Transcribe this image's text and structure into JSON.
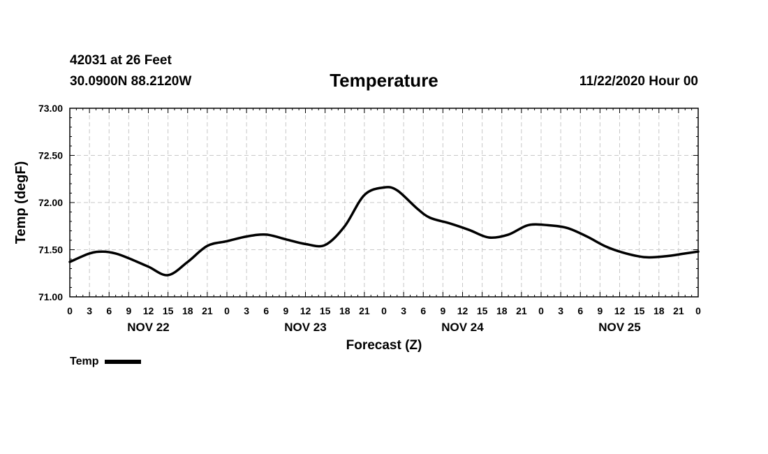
{
  "header": {
    "station": "42031 at 26 Feet",
    "coords": "30.0900N 88.2120W",
    "title": "Temperature",
    "run": "11/22/2020 Hour 00"
  },
  "chart_data": {
    "type": "line",
    "title": "Temperature",
    "xlabel": "Forecast (Z)",
    "ylabel": "Temp (degF)",
    "ylim": [
      71.0,
      73.0
    ],
    "yticks": [
      "71.00",
      "71.50",
      "72.00",
      "72.50",
      "73.00"
    ],
    "xlim_hours": [
      0,
      96
    ],
    "xticks_hours": [
      0,
      3,
      6,
      9,
      12,
      15,
      18,
      21,
      24,
      27,
      30,
      33,
      36,
      39,
      42,
      45,
      48,
      51,
      54,
      57,
      60,
      63,
      66,
      69,
      72,
      75,
      78,
      81,
      84,
      87,
      90,
      93,
      96
    ],
    "xtick_labels": [
      "0",
      "3",
      "6",
      "9",
      "12",
      "15",
      "18",
      "21",
      "0",
      "3",
      "6",
      "9",
      "12",
      "15",
      "18",
      "21",
      "0",
      "3",
      "6",
      "9",
      "12",
      "15",
      "18",
      "21",
      "0",
      "3",
      "6",
      "9",
      "12",
      "15",
      "18",
      "21",
      "0"
    ],
    "day_labels": [
      {
        "hour": 12,
        "label": "NOV 22"
      },
      {
        "hour": 36,
        "label": "NOV 23"
      },
      {
        "hour": 60,
        "label": "NOV 24"
      },
      {
        "hour": 84,
        "label": "NOV 25"
      }
    ],
    "grid": true,
    "legend": "bottom-left",
    "series": [
      {
        "name": "Temp",
        "color": "#000000",
        "x": [
          0,
          3,
          5,
          7,
          9,
          12,
          15,
          18,
          21,
          24,
          27,
          30,
          33,
          36,
          39,
          42,
          45,
          48,
          50,
          53,
          55,
          58,
          61,
          64,
          67,
          70,
          73,
          76,
          79,
          82,
          85,
          88,
          91,
          94,
          96
        ],
        "y": [
          71.37,
          71.46,
          71.48,
          71.46,
          71.41,
          71.32,
          71.23,
          71.37,
          71.54,
          71.59,
          71.64,
          71.66,
          71.61,
          71.56,
          71.55,
          71.75,
          72.08,
          72.16,
          72.13,
          71.94,
          71.84,
          71.78,
          71.71,
          71.63,
          71.66,
          71.76,
          71.76,
          71.73,
          71.64,
          71.53,
          71.46,
          71.42,
          71.43,
          71.46,
          71.48
        ]
      }
    ]
  },
  "legend": {
    "label": "Temp"
  }
}
